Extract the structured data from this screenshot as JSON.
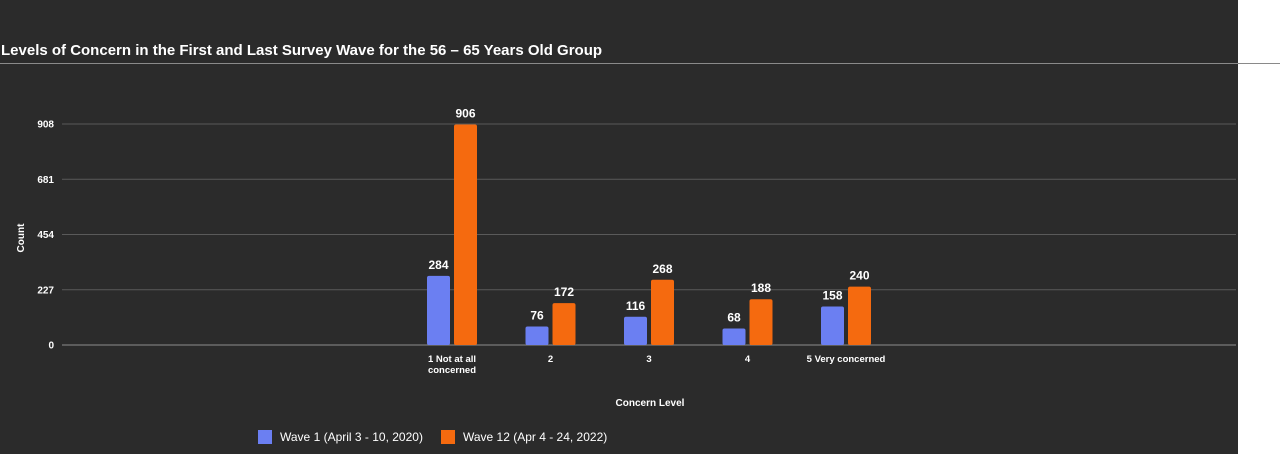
{
  "title": "Levels of Concern in the First and Last Survey Wave for the 56 – 65 Years Old Group",
  "chart_data": {
    "type": "bar",
    "title": "Levels of Concern in the First and Last Survey Wave for the 56 – 65 Years Old Group",
    "xlabel": "Concern Level",
    "ylabel": "Count",
    "categories": [
      "1 Not at all concerned",
      "2",
      "3",
      "4",
      "5 Very concerned"
    ],
    "category_lines": [
      [
        "1 Not at all",
        "concerned"
      ],
      [
        "2"
      ],
      [
        "3"
      ],
      [
        "4"
      ],
      [
        "5 Very concerned"
      ]
    ],
    "yticks": [
      0,
      227,
      454,
      681,
      908
    ],
    "ylim": [
      0,
      908
    ],
    "grid": true,
    "legend_position": "bottom",
    "series": [
      {
        "name": "Wave 1 (April 3 - 10, 2020)",
        "color": "#6b7ff2",
        "values": [
          284,
          76,
          116,
          68,
          158
        ]
      },
      {
        "name": "Wave 12 (Apr 4 - 24, 2022)",
        "color": "#f56a0f",
        "values": [
          906,
          172,
          268,
          188,
          240
        ]
      }
    ]
  }
}
